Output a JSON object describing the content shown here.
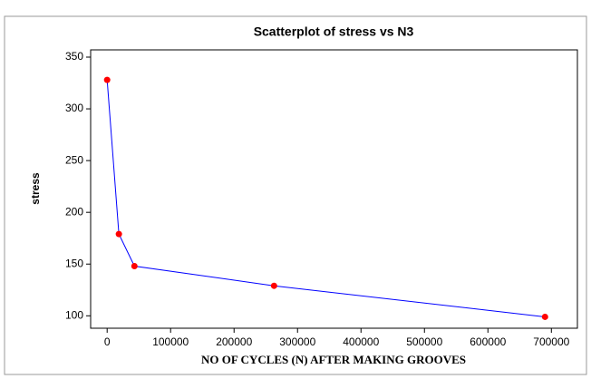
{
  "chart_data": {
    "type": "line",
    "title": "Scatterplot of stress vs N3",
    "x_label": "NO OF CYCLES (N) AFTER MAKING GROOVES",
    "y_label": "stress",
    "x": [
      0,
      18500,
      43000,
      263000,
      690000
    ],
    "series": [
      {
        "name": "stress",
        "color": "#0000ff",
        "marker_color": "#ff0000",
        "values": [
          328,
          179,
          148,
          129,
          99
        ]
      }
    ],
    "xlim": [
      -26000,
      741000
    ],
    "xticks": [
      0,
      100000,
      200000,
      300000,
      400000,
      500000,
      600000,
      700000
    ],
    "ylim": [
      88,
      357
    ],
    "yticks": [
      100,
      150,
      200,
      250,
      300,
      350
    ],
    "grid": false
  }
}
